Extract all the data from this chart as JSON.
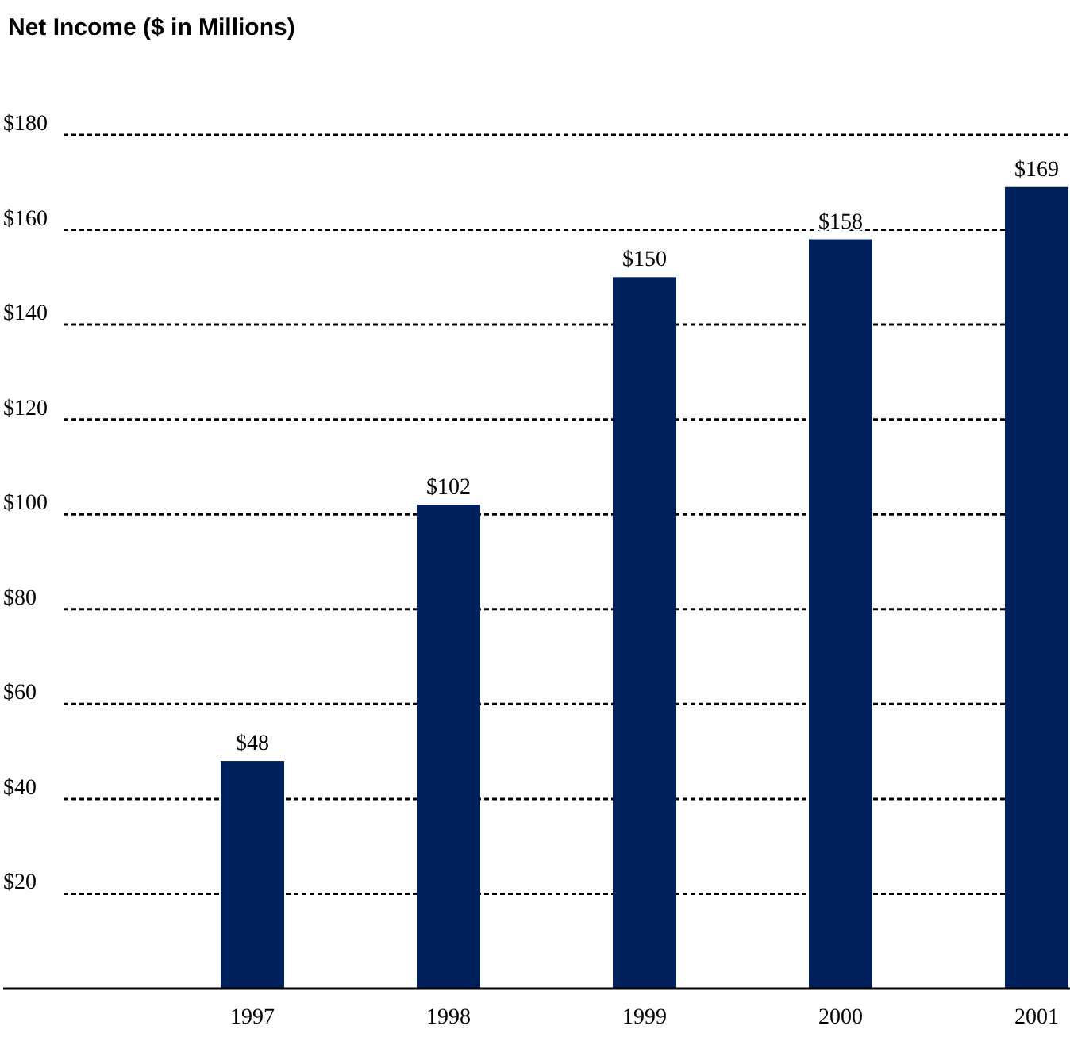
{
  "chart_data": {
    "type": "bar",
    "title": "Net Income ($ in Millions)",
    "categories": [
      "1997",
      "1998",
      "1999",
      "2000",
      "2001"
    ],
    "values": [
      48,
      102,
      150,
      158,
      169
    ],
    "value_labels": [
      "$48",
      "$102",
      "$150",
      "$158",
      "$169"
    ],
    "color": "#00205b",
    "ylim": [
      0,
      180
    ],
    "yticks": [
      {
        "value": 20,
        "label": "$20"
      },
      {
        "value": 40,
        "label": "$40"
      },
      {
        "value": 60,
        "label": "$60"
      },
      {
        "value": 80,
        "label": "$80"
      },
      {
        "value": 100,
        "label": "$100"
      },
      {
        "value": 120,
        "label": "$120"
      },
      {
        "value": 140,
        "label": "$140"
      },
      {
        "value": 160,
        "label": "$160"
      },
      {
        "value": 180,
        "label": "$180"
      }
    ],
    "grid": "y"
  }
}
